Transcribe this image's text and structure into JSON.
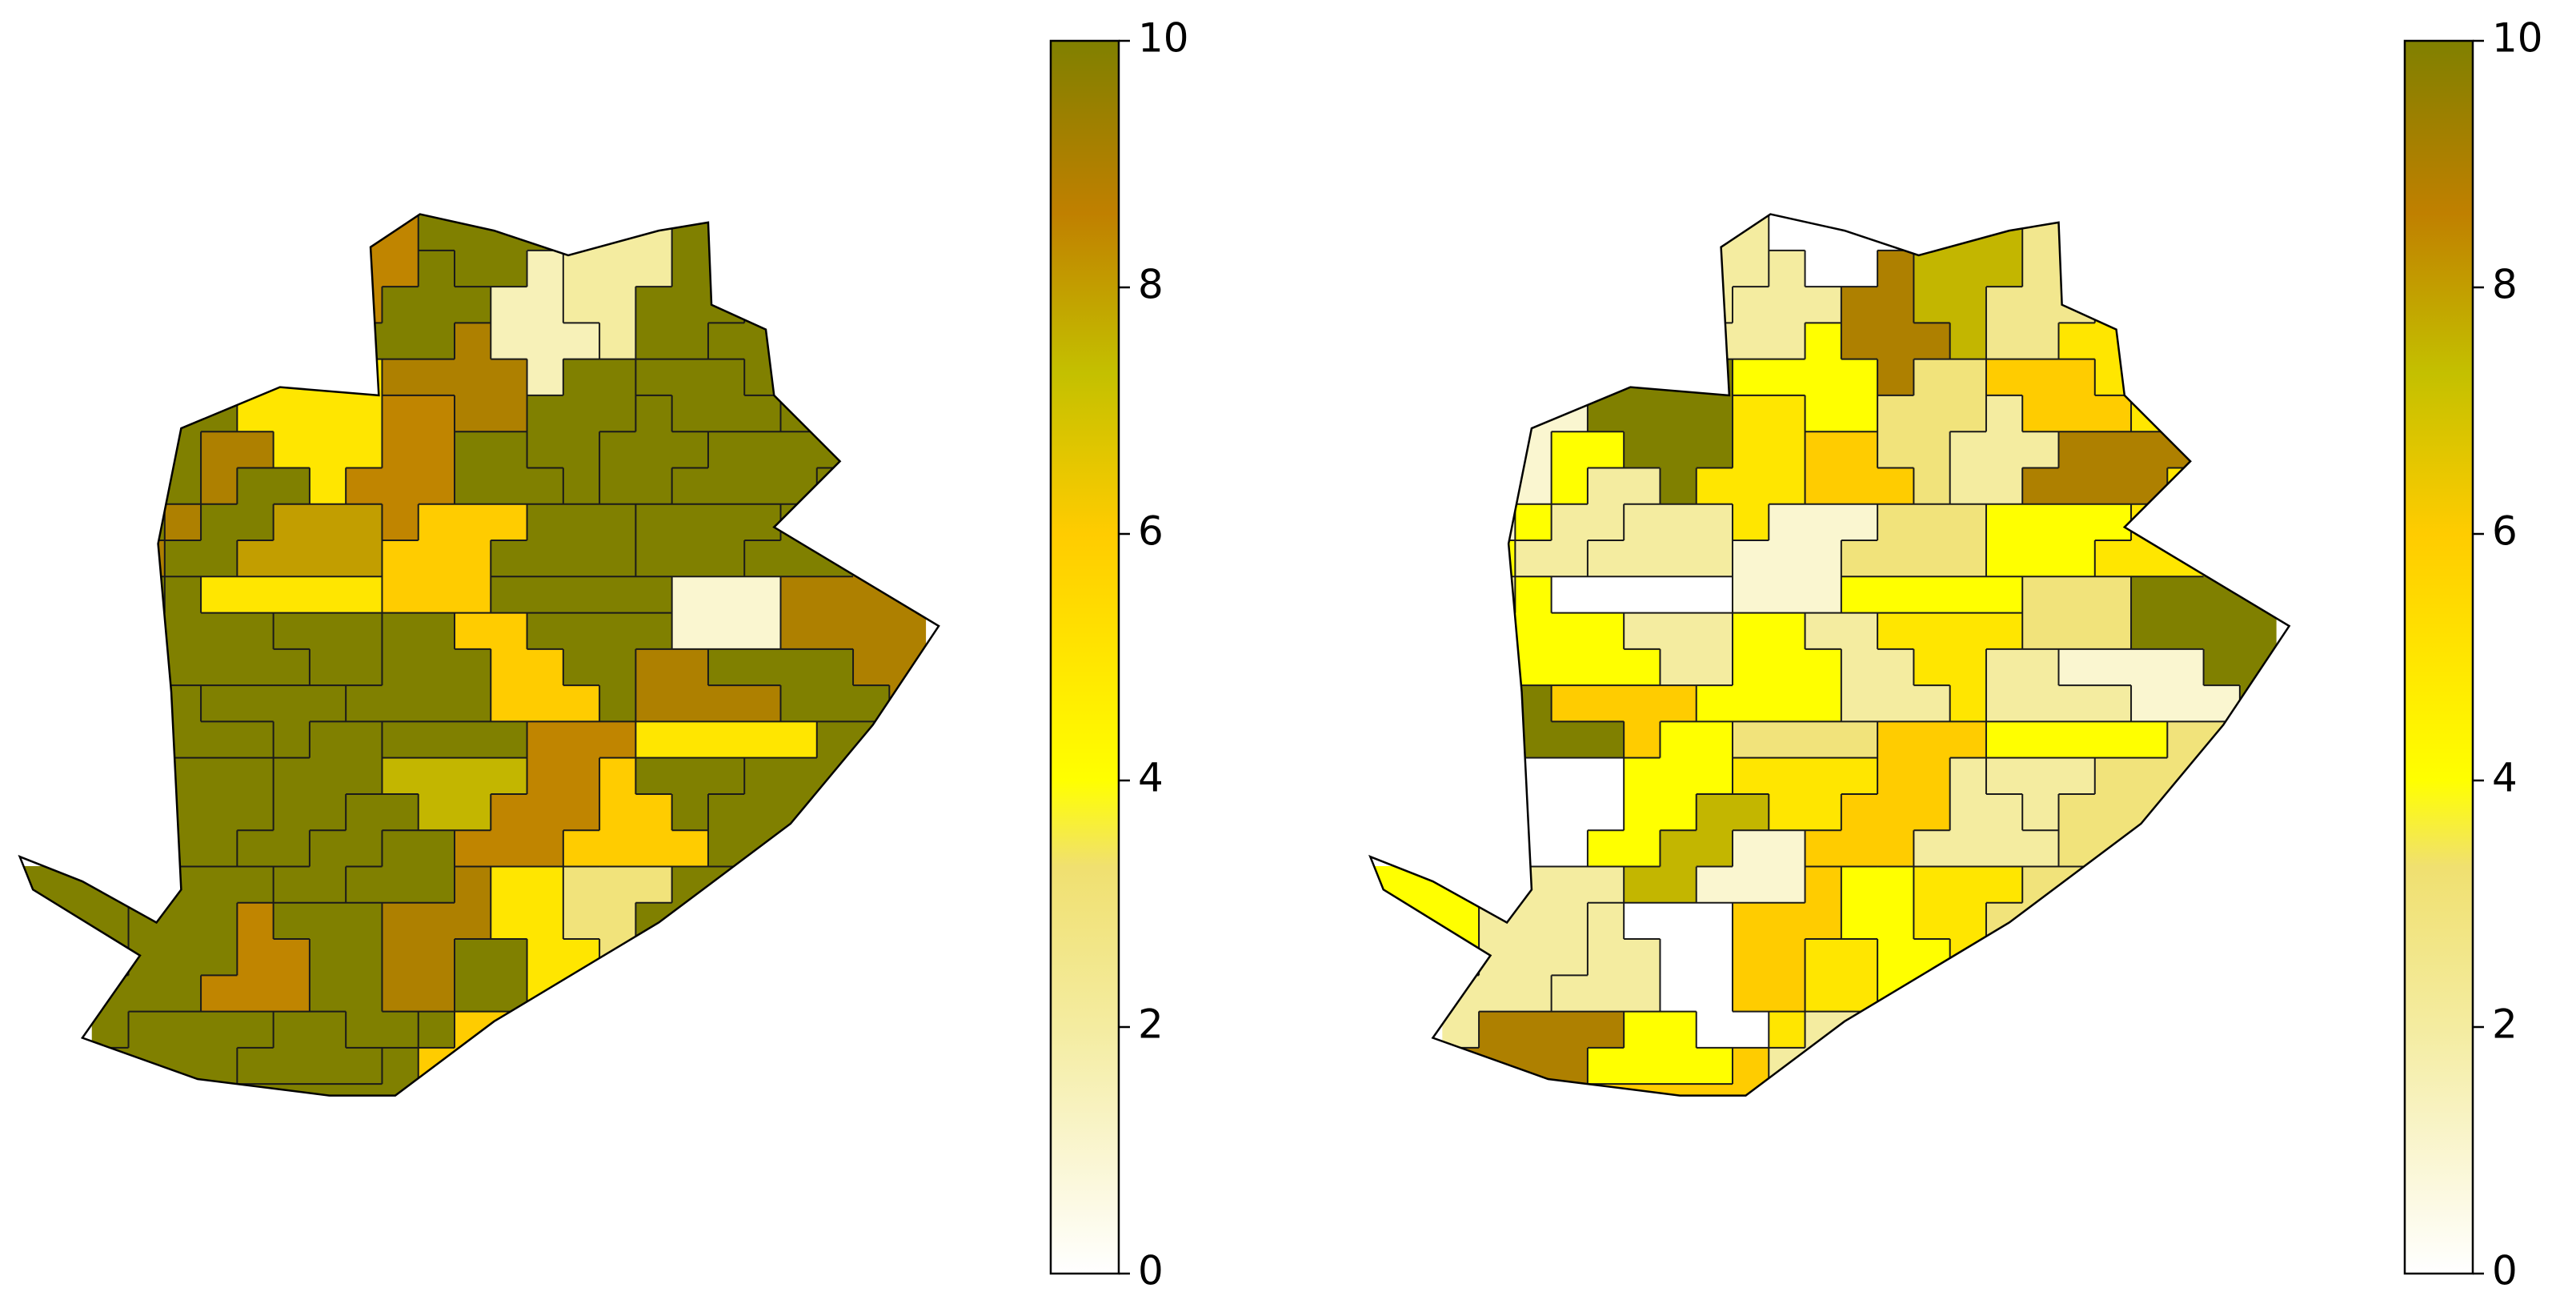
{
  "chart_data": [
    {
      "type": "choropleth",
      "values": [
        10,
        8.5,
        2,
        10,
        10,
        1.5,
        10,
        9,
        10,
        5,
        10,
        10,
        8.5,
        10,
        9,
        10,
        10,
        10,
        6,
        10,
        8,
        10,
        10,
        5,
        10,
        9,
        10,
        10,
        1,
        10,
        6,
        10,
        10,
        10,
        9,
        10,
        10,
        5,
        10,
        7.5,
        10,
        10,
        8.5,
        10,
        10,
        6,
        10,
        10,
        3,
        10,
        9,
        10,
        10,
        5,
        8.5,
        10,
        10,
        6,
        10,
        10
      ],
      "colormap": [
        [
          0,
          "#ffffff"
        ],
        [
          2,
          "#f4eca0"
        ],
        [
          3.3,
          "#f0e070"
        ],
        [
          4,
          "#ffff00"
        ],
        [
          6,
          "#ffcc00"
        ],
        [
          7.3,
          "#c4c000"
        ],
        [
          8.6,
          "#c08000"
        ],
        [
          10,
          "#808000"
        ]
      ],
      "clim": [
        0,
        10
      ],
      "cticks": [
        0,
        2,
        4,
        6,
        8,
        10
      ]
    },
    {
      "type": "choropleth",
      "values": [
        0,
        2,
        7.5,
        2,
        2.5,
        9,
        5,
        4,
        6,
        10,
        3,
        1,
        5,
        2,
        4,
        6,
        9,
        2,
        1,
        4,
        2,
        3,
        5,
        0,
        4,
        10,
        2,
        5,
        3,
        4,
        2,
        1,
        6,
        4,
        2,
        10,
        3,
        4,
        0,
        5,
        2,
        4,
        6,
        3,
        7.5,
        2,
        4,
        1,
        5,
        2,
        6,
        3,
        0,
        4,
        2,
        5,
        9,
        2,
        4,
        6
      ],
      "colormap": [
        [
          0,
          "#ffffff"
        ],
        [
          2,
          "#f4eca0"
        ],
        [
          3.3,
          "#f0e070"
        ],
        [
          4,
          "#ffff00"
        ],
        [
          6,
          "#ffcc00"
        ],
        [
          7.3,
          "#c4c000"
        ],
        [
          8.6,
          "#c08000"
        ],
        [
          10,
          "#808000"
        ]
      ],
      "clim": [
        0,
        10
      ],
      "cticks": [
        0,
        2,
        4,
        6,
        8,
        10
      ]
    }
  ]
}
